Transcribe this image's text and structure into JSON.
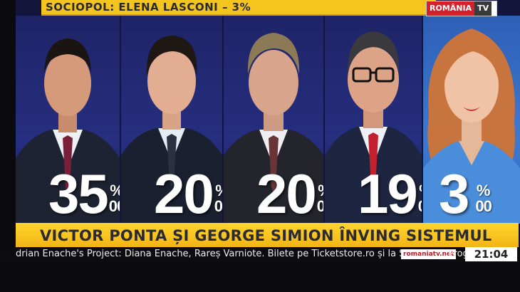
{
  "top_banner": {
    "text": "SOCIOPOL: ELENA LASCONI – 3%"
  },
  "logo": {
    "main": "ROMÂNIA",
    "tv": "TV"
  },
  "candidates": [
    {
      "value": "35",
      "sign": "%",
      "suffix": "00"
    },
    {
      "value": "20",
      "sign": "%",
      "suffix": "00"
    },
    {
      "value": "20",
      "sign": "%",
      "suffix": "00"
    },
    {
      "value": "19",
      "sign": "%",
      "suffix": "00"
    },
    {
      "value": "3",
      "sign": "%",
      "suffix": "00"
    }
  ],
  "headline": {
    "text": "VICTOR PONTA ȘI GEORGE SIMION ÎNVING SISTEMUL"
  },
  "ticker": {
    "text": "drian Enache's Project: Diana Enache, Rareș Varniote. Bilete pe Ticketstore.ro și la Sala Dalles",
    "url_badge": "romaniatv.net",
    "next": "Prog",
    "clock": "21:04"
  },
  "colors": {
    "banner": "#f4c51f",
    "panel": "#1e2466",
    "panel_light": "#2d5fb5",
    "logo_red": "#d6202b"
  }
}
